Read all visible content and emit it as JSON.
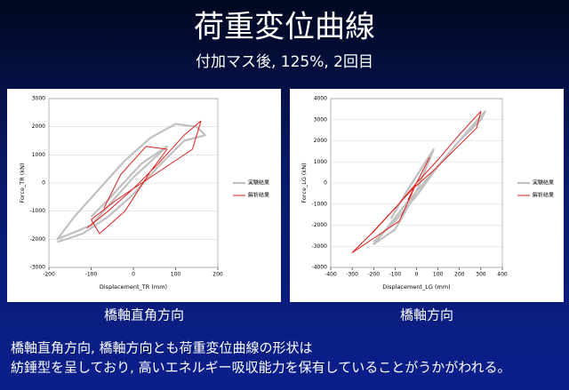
{
  "slide": {
    "title": "荷重変位曲線",
    "subtitle": "付加マス後, 125%, 2回目",
    "captions": [
      "橋軸直角方向",
      "橋軸方向"
    ],
    "body": [
      "橋軸直角方向, 橋軸方向とも荷重変位曲線の形状は",
      "紡錘型を呈しており, 高いエネルギー吸収能力を保有していることがうかがわれる。"
    ]
  },
  "chart_data": [
    {
      "type": "line",
      "xlabel": "Displacement_TR (mm)",
      "ylabel": "Force_TR (kN)",
      "xlim": [
        -200,
        200
      ],
      "xticks": [
        -200,
        -100,
        0,
        100,
        200
      ],
      "ylim": [
        -3000,
        3000
      ],
      "yticks": [
        -3000,
        -2000,
        -1000,
        0,
        1000,
        2000,
        3000
      ],
      "grid": true,
      "legend": "right",
      "series": [
        {
          "name": "実験結果",
          "color": "#c0c0c0",
          "x": [
            -180,
            -120,
            -60,
            0,
            60,
            120,
            170,
            150,
            100,
            40,
            -20,
            -80,
            -140,
            -180,
            -100,
            0,
            80,
            20,
            -60,
            -100
          ],
          "values": [
            -2100,
            -1800,
            -1200,
            -400,
            600,
            1500,
            1700,
            2000,
            2100,
            1600,
            800,
            -200,
            -1200,
            -2000,
            -1500,
            200,
            1300,
            700,
            -600,
            -1200
          ]
        },
        {
          "name": "解析結果",
          "color": "#e02020",
          "x": [
            -110,
            -60,
            0,
            60,
            120,
            160,
            140,
            80,
            20,
            -40,
            -100,
            -80,
            -20,
            40,
            80,
            30,
            -30,
            -70
          ],
          "values": [
            -1600,
            -1000,
            -200,
            700,
            1700,
            2200,
            1200,
            600,
            0,
            -600,
            -1300,
            -1800,
            -1000,
            400,
            1200,
            1300,
            300,
            -900
          ]
        }
      ]
    },
    {
      "type": "line",
      "xlabel": "Displacement_LG (mm)",
      "ylabel": "Force_LG (kN)",
      "xlim": [
        -400,
        400
      ],
      "xticks": [
        -400,
        -300,
        -200,
        -100,
        0,
        100,
        200,
        300,
        400
      ],
      "ylim": [
        -4000,
        4000
      ],
      "yticks": [
        -4000,
        -3000,
        -2000,
        -1000,
        0,
        1000,
        2000,
        3000,
        4000
      ],
      "grid": true,
      "legend": "right",
      "series": [
        {
          "name": "実験結果",
          "color": "#c0c0c0",
          "x": [
            -200,
            -100,
            0,
            100,
            200,
            300,
            320,
            250,
            150,
            50,
            -50,
            -150,
            -200,
            -100,
            0,
            80,
            -40,
            -120
          ],
          "values": [
            -2800,
            -1800,
            -600,
            800,
            2000,
            3000,
            3400,
            2600,
            1400,
            200,
            -1000,
            -2300,
            -2900,
            -2200,
            -400,
            1600,
            -300,
            -1700
          ]
        },
        {
          "name": "解析結果",
          "color": "#e02020",
          "x": [
            -300,
            -200,
            -100,
            0,
            100,
            200,
            300,
            280,
            180,
            80,
            -20,
            -120,
            -220,
            -300,
            -80,
            0,
            60,
            -40
          ],
          "values": [
            -3300,
            -2300,
            -1200,
            0,
            1100,
            2300,
            3400,
            2600,
            1600,
            600,
            -300,
            -1400,
            -2500,
            -3300,
            -1800,
            0,
            1200,
            -800
          ]
        }
      ]
    }
  ]
}
